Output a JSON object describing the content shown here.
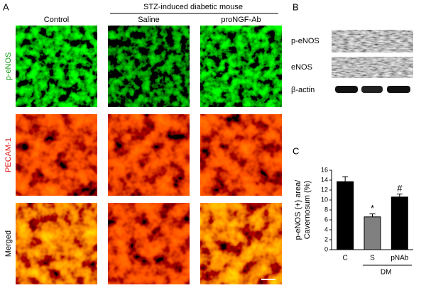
{
  "panel_a": {
    "label": "A",
    "group_title": "STZ-induced diabetic mouse",
    "columns": [
      "Control",
      "Saline",
      "proNGF-Ab"
    ],
    "rows": [
      "p-eNOS",
      "PECAM-1",
      "Merged"
    ]
  },
  "panel_b": {
    "label": "B",
    "bands": [
      "p-eNOS",
      "eNOS",
      "β-actin"
    ]
  },
  "chart_data": {
    "type": "bar",
    "panel_label": "C",
    "y_label": [
      "p-eNOS (+) area/",
      "Cavernosum (%)"
    ],
    "categories": [
      "C",
      "S",
      "pNAb"
    ],
    "values": [
      13.7,
      6.6,
      10.6
    ],
    "errors": [
      1.0,
      0.6,
      0.6
    ],
    "colors": [
      "#000000",
      "#808080",
      "#000000"
    ],
    "annotations": [
      null,
      "*",
      "#"
    ],
    "group_label": "DM",
    "ylim": [
      0,
      16
    ],
    "yticks": [
      0,
      2,
      4,
      6,
      8,
      10,
      12,
      14,
      16
    ]
  }
}
